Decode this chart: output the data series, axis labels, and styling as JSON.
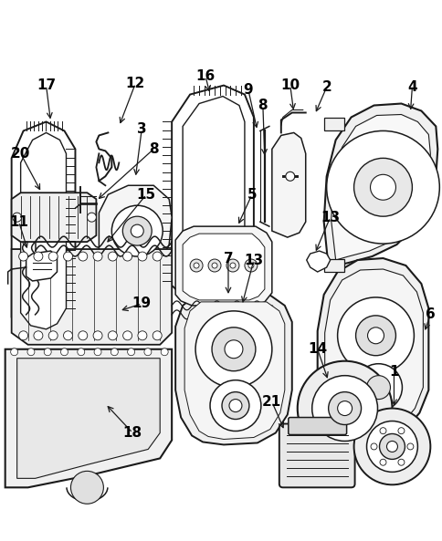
{
  "bg_color": "#ffffff",
  "line_color": "#1a1a1a",
  "figsize": [
    4.85,
    5.93
  ],
  "dpi": 100,
  "label_fontsize": 11
}
